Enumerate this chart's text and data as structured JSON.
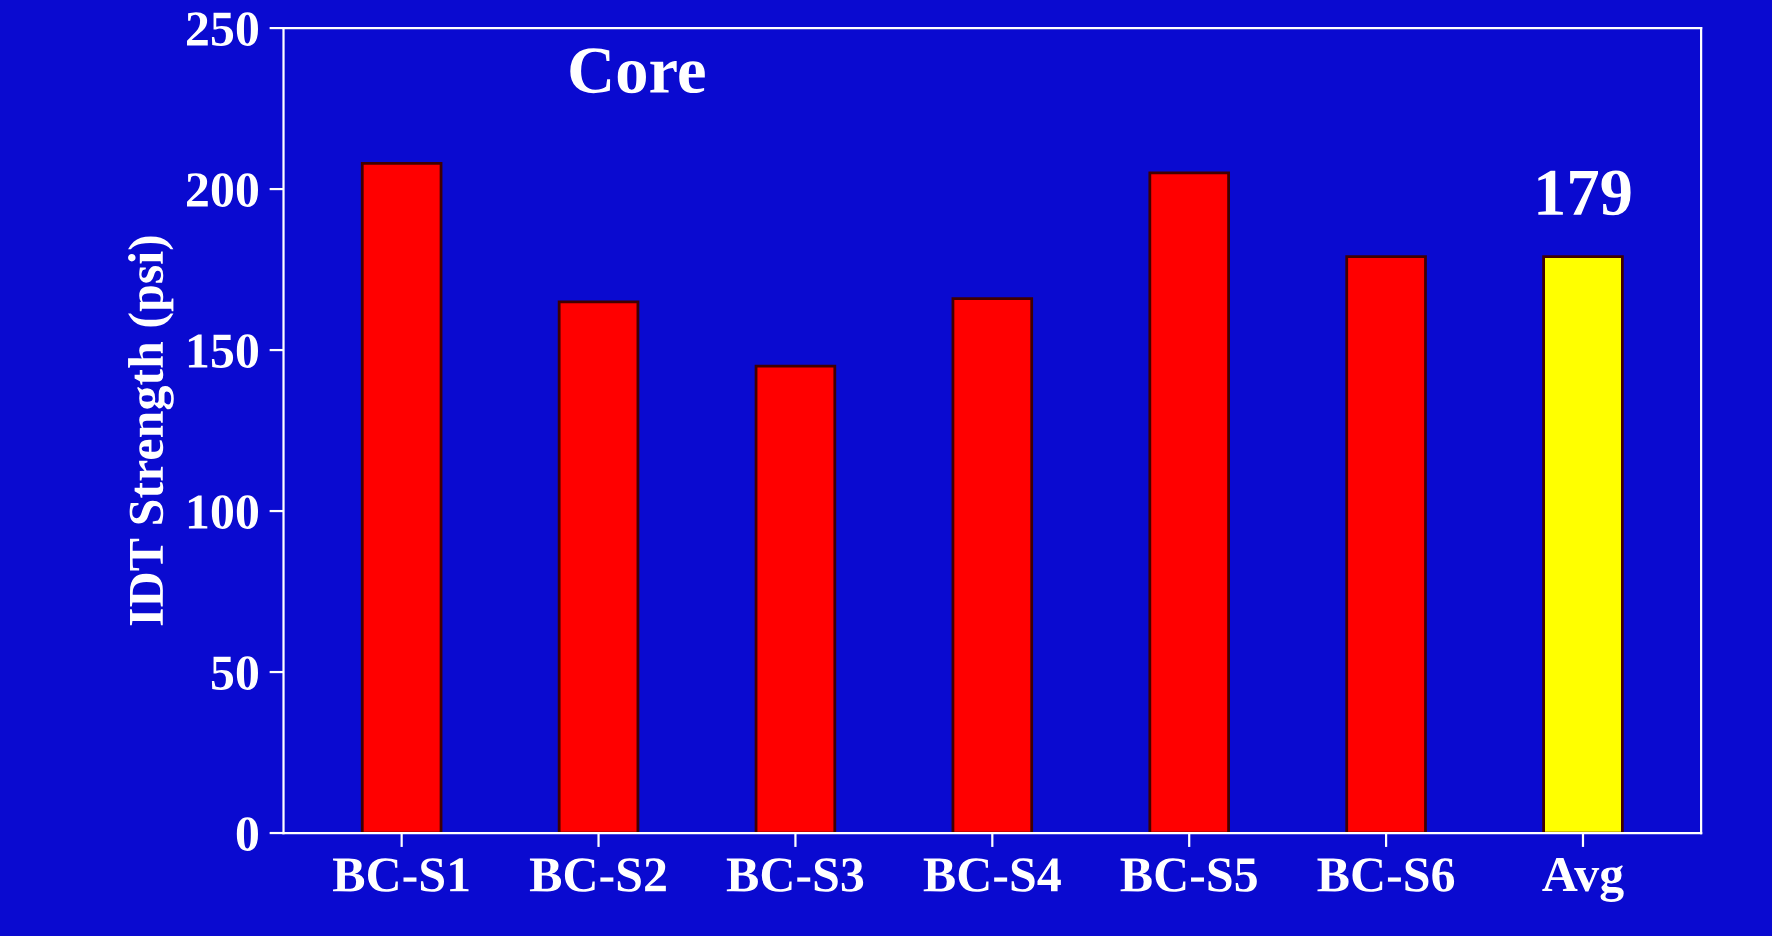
{
  "chart_data": {
    "type": "bar",
    "title": "Core",
    "ylabel": "IDT Strength (psi)",
    "categories": [
      "BC-S1",
      "BC-S2",
      "BC-S3",
      "BC-S4",
      "BC-S5",
      "BC-S6",
      "Avg"
    ],
    "values": [
      208,
      165,
      145,
      166,
      205,
      179,
      179
    ],
    "colors": [
      "#ff0000",
      "#ff0000",
      "#ff0000",
      "#ff0000",
      "#ff0000",
      "#ff0000",
      "#ffff00"
    ],
    "value_labels": [
      null,
      null,
      null,
      null,
      null,
      null,
      "179"
    ],
    "ylim": [
      0,
      250
    ],
    "yticks": [
      0,
      50,
      100,
      150,
      200,
      250
    ],
    "grid": false,
    "legend": false
  }
}
